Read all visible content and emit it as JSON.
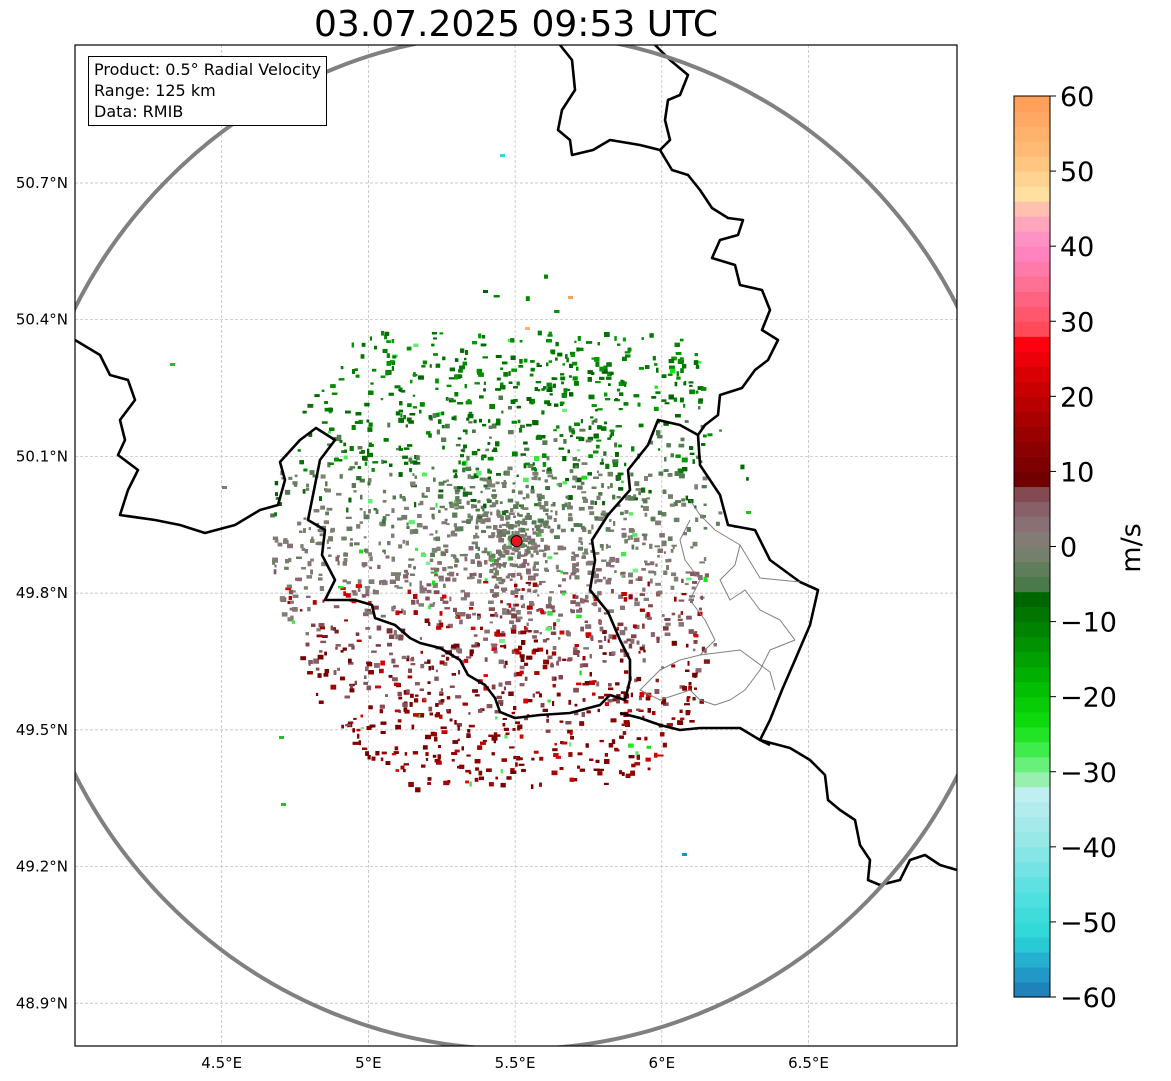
{
  "title": "03.07.2025 09:53 UTC",
  "info": {
    "product": "Product: 0.5° Radial Velocity",
    "range": "Range: 125 km",
    "source": "Data: RMIB"
  },
  "map": {
    "lon_range": [
      4.0,
      7.0
    ],
    "lat_range": [
      48.8,
      51.0
    ],
    "lon_ticks": [
      {
        "value": 4.5,
        "label": "4.5°E"
      },
      {
        "value": 5.0,
        "label": "5°E"
      },
      {
        "value": 5.5,
        "label": "5.5°E"
      },
      {
        "value": 6.0,
        "label": "6°E"
      },
      {
        "value": 6.5,
        "label": "6.5°E"
      }
    ],
    "lat_ticks": [
      {
        "value": 50.7,
        "label": "50.7°N"
      },
      {
        "value": 50.4,
        "label": "50.4°N"
      },
      {
        "value": 50.1,
        "label": "50.1°N"
      },
      {
        "value": 49.8,
        "label": "49.8°N"
      },
      {
        "value": 49.5,
        "label": "49.5°N"
      },
      {
        "value": 49.2,
        "label": "49.2°N"
      },
      {
        "value": 48.9,
        "label": "48.9°N"
      }
    ],
    "radar_site": {
      "lon": 5.505,
      "lat": 49.914,
      "color": "#e8141c"
    },
    "range_ring_color": "#808080",
    "grid": true
  },
  "colorbar": {
    "unit": "m/s",
    "min": -60,
    "max": 60,
    "ticks": [
      {
        "value": 60,
        "label": "60"
      },
      {
        "value": 50,
        "label": "50"
      },
      {
        "value": 40,
        "label": "40"
      },
      {
        "value": 30,
        "label": "30"
      },
      {
        "value": 20,
        "label": "20"
      },
      {
        "value": 10,
        "label": "10"
      },
      {
        "value": 0,
        "label": "0"
      },
      {
        "value": -10,
        "label": "−10"
      },
      {
        "value": -20,
        "label": "−20"
      },
      {
        "value": -30,
        "label": "−30"
      },
      {
        "value": -40,
        "label": "−40"
      },
      {
        "value": -50,
        "label": "−50"
      },
      {
        "value": -60,
        "label": "−60"
      }
    ],
    "color_stops": [
      {
        "v": -60,
        "c": "#1f77b4"
      },
      {
        "v": -56,
        "c": "#22a4cc"
      },
      {
        "v": -52,
        "c": "#2ad8d8"
      },
      {
        "v": -46,
        "c": "#55e0e0"
      },
      {
        "v": -40,
        "c": "#90e6e6"
      },
      {
        "v": -33,
        "c": "#bfeff0"
      },
      {
        "v": -31,
        "c": "#98f0b0"
      },
      {
        "v": -28,
        "c": "#50f060"
      },
      {
        "v": -24,
        "c": "#10e010"
      },
      {
        "v": -18,
        "c": "#00b800"
      },
      {
        "v": -12,
        "c": "#008a00"
      },
      {
        "v": -6,
        "c": "#006000"
      },
      {
        "v": -5,
        "c": "#4a7a4a"
      },
      {
        "v": 0,
        "c": "#808275"
      },
      {
        "v": 4,
        "c": "#8a6a74"
      },
      {
        "v": 8,
        "c": "#804045"
      },
      {
        "v": 9,
        "c": "#700000"
      },
      {
        "v": 16,
        "c": "#a00000"
      },
      {
        "v": 22,
        "c": "#d00000"
      },
      {
        "v": 27,
        "c": "#ff0010"
      },
      {
        "v": 29,
        "c": "#ff4a5a"
      },
      {
        "v": 35,
        "c": "#ff7095"
      },
      {
        "v": 40,
        "c": "#ff88c8"
      },
      {
        "v": 44,
        "c": "#ffb0b8"
      },
      {
        "v": 47,
        "c": "#ffe0a0"
      },
      {
        "v": 52,
        "c": "#ffc07a"
      },
      {
        "v": 60,
        "c": "#ff9a55"
      }
    ]
  }
}
